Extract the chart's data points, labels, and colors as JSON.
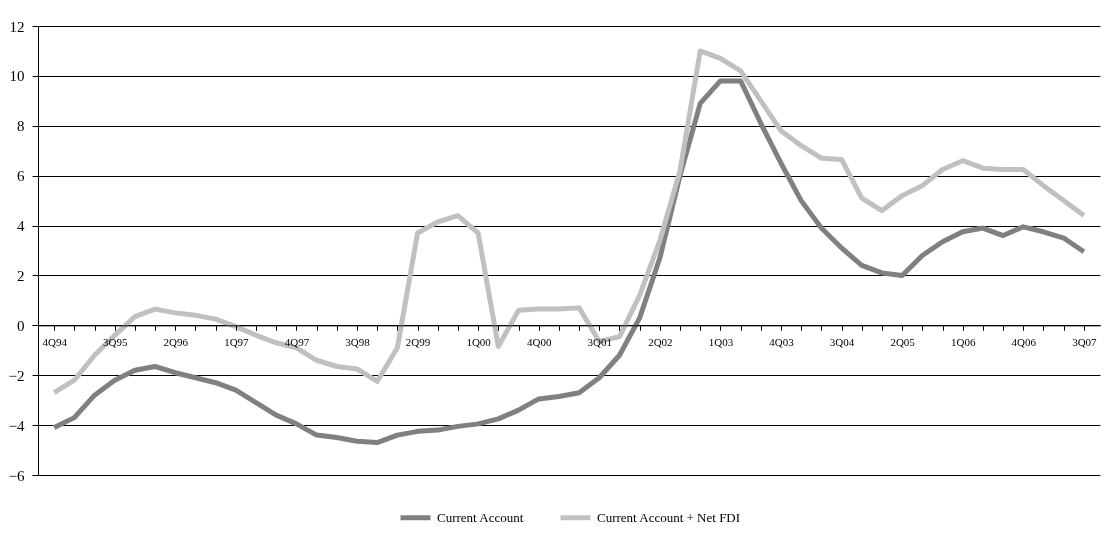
{
  "chart_data": {
    "type": "line",
    "categories": [
      "4Q94",
      null,
      null,
      "3Q95",
      null,
      null,
      "2Q96",
      null,
      null,
      "1Q97",
      null,
      null,
      "4Q97",
      null,
      null,
      "3Q98",
      null,
      null,
      "2Q99",
      null,
      null,
      "1Q00",
      null,
      null,
      "4Q00",
      null,
      null,
      "3Q01",
      null,
      null,
      "2Q02",
      null,
      null,
      "1Q03",
      null,
      null,
      "4Q03",
      null,
      null,
      "3Q04",
      null,
      null,
      "2Q05",
      null,
      null,
      "1Q06",
      null,
      null,
      "4Q06",
      null,
      null,
      "3Q07"
    ],
    "series": [
      {
        "name": "Current Account",
        "color": "#808080",
        "values": [
          -4.1,
          -3.7,
          -2.8,
          -2.2,
          -1.8,
          -1.65,
          -1.9,
          -2.1,
          -2.3,
          -2.6,
          -3.1,
          -3.6,
          -3.95,
          -4.4,
          -4.5,
          -4.65,
          -4.7,
          -4.4,
          -4.25,
          -4.2,
          -4.05,
          -3.95,
          -3.75,
          -3.4,
          -2.95,
          -2.85,
          -2.7,
          -2.1,
          -1.2,
          0.3,
          2.7,
          6.0,
          8.9,
          9.8,
          9.8,
          8.1,
          6.5,
          5.0,
          3.9,
          3.1,
          2.4,
          2.1,
          2.0,
          2.8,
          3.35,
          3.75,
          3.9,
          3.6,
          3.95,
          3.75,
          3.5,
          2.95
        ]
      },
      {
        "name": "Current Account + Net FDI",
        "color": "#c0c0c0",
        "values": [
          -2.7,
          -2.2,
          -1.2,
          -0.4,
          0.35,
          0.65,
          0.5,
          0.4,
          0.25,
          -0.05,
          -0.4,
          -0.7,
          -0.9,
          -1.4,
          -1.65,
          -1.75,
          -2.25,
          -0.9,
          3.7,
          4.15,
          4.4,
          3.7,
          -0.85,
          0.6,
          0.65,
          0.65,
          0.7,
          -0.65,
          -0.45,
          1.2,
          3.4,
          6.2,
          11.0,
          10.7,
          10.2,
          9.0,
          7.8,
          7.2,
          6.7,
          6.65,
          5.1,
          4.6,
          5.2,
          5.6,
          6.25,
          6.6,
          6.3,
          6.25,
          6.25,
          5.6,
          5.0,
          4.4
        ]
      }
    ],
    "ylim": [
      -6,
      12
    ],
    "yticks": [
      -6,
      -4,
      -2,
      0,
      2,
      4,
      6,
      8,
      10,
      12
    ],
    "grid": "y",
    "legend": "bottom",
    "marker": "none",
    "line_style": "solid"
  }
}
